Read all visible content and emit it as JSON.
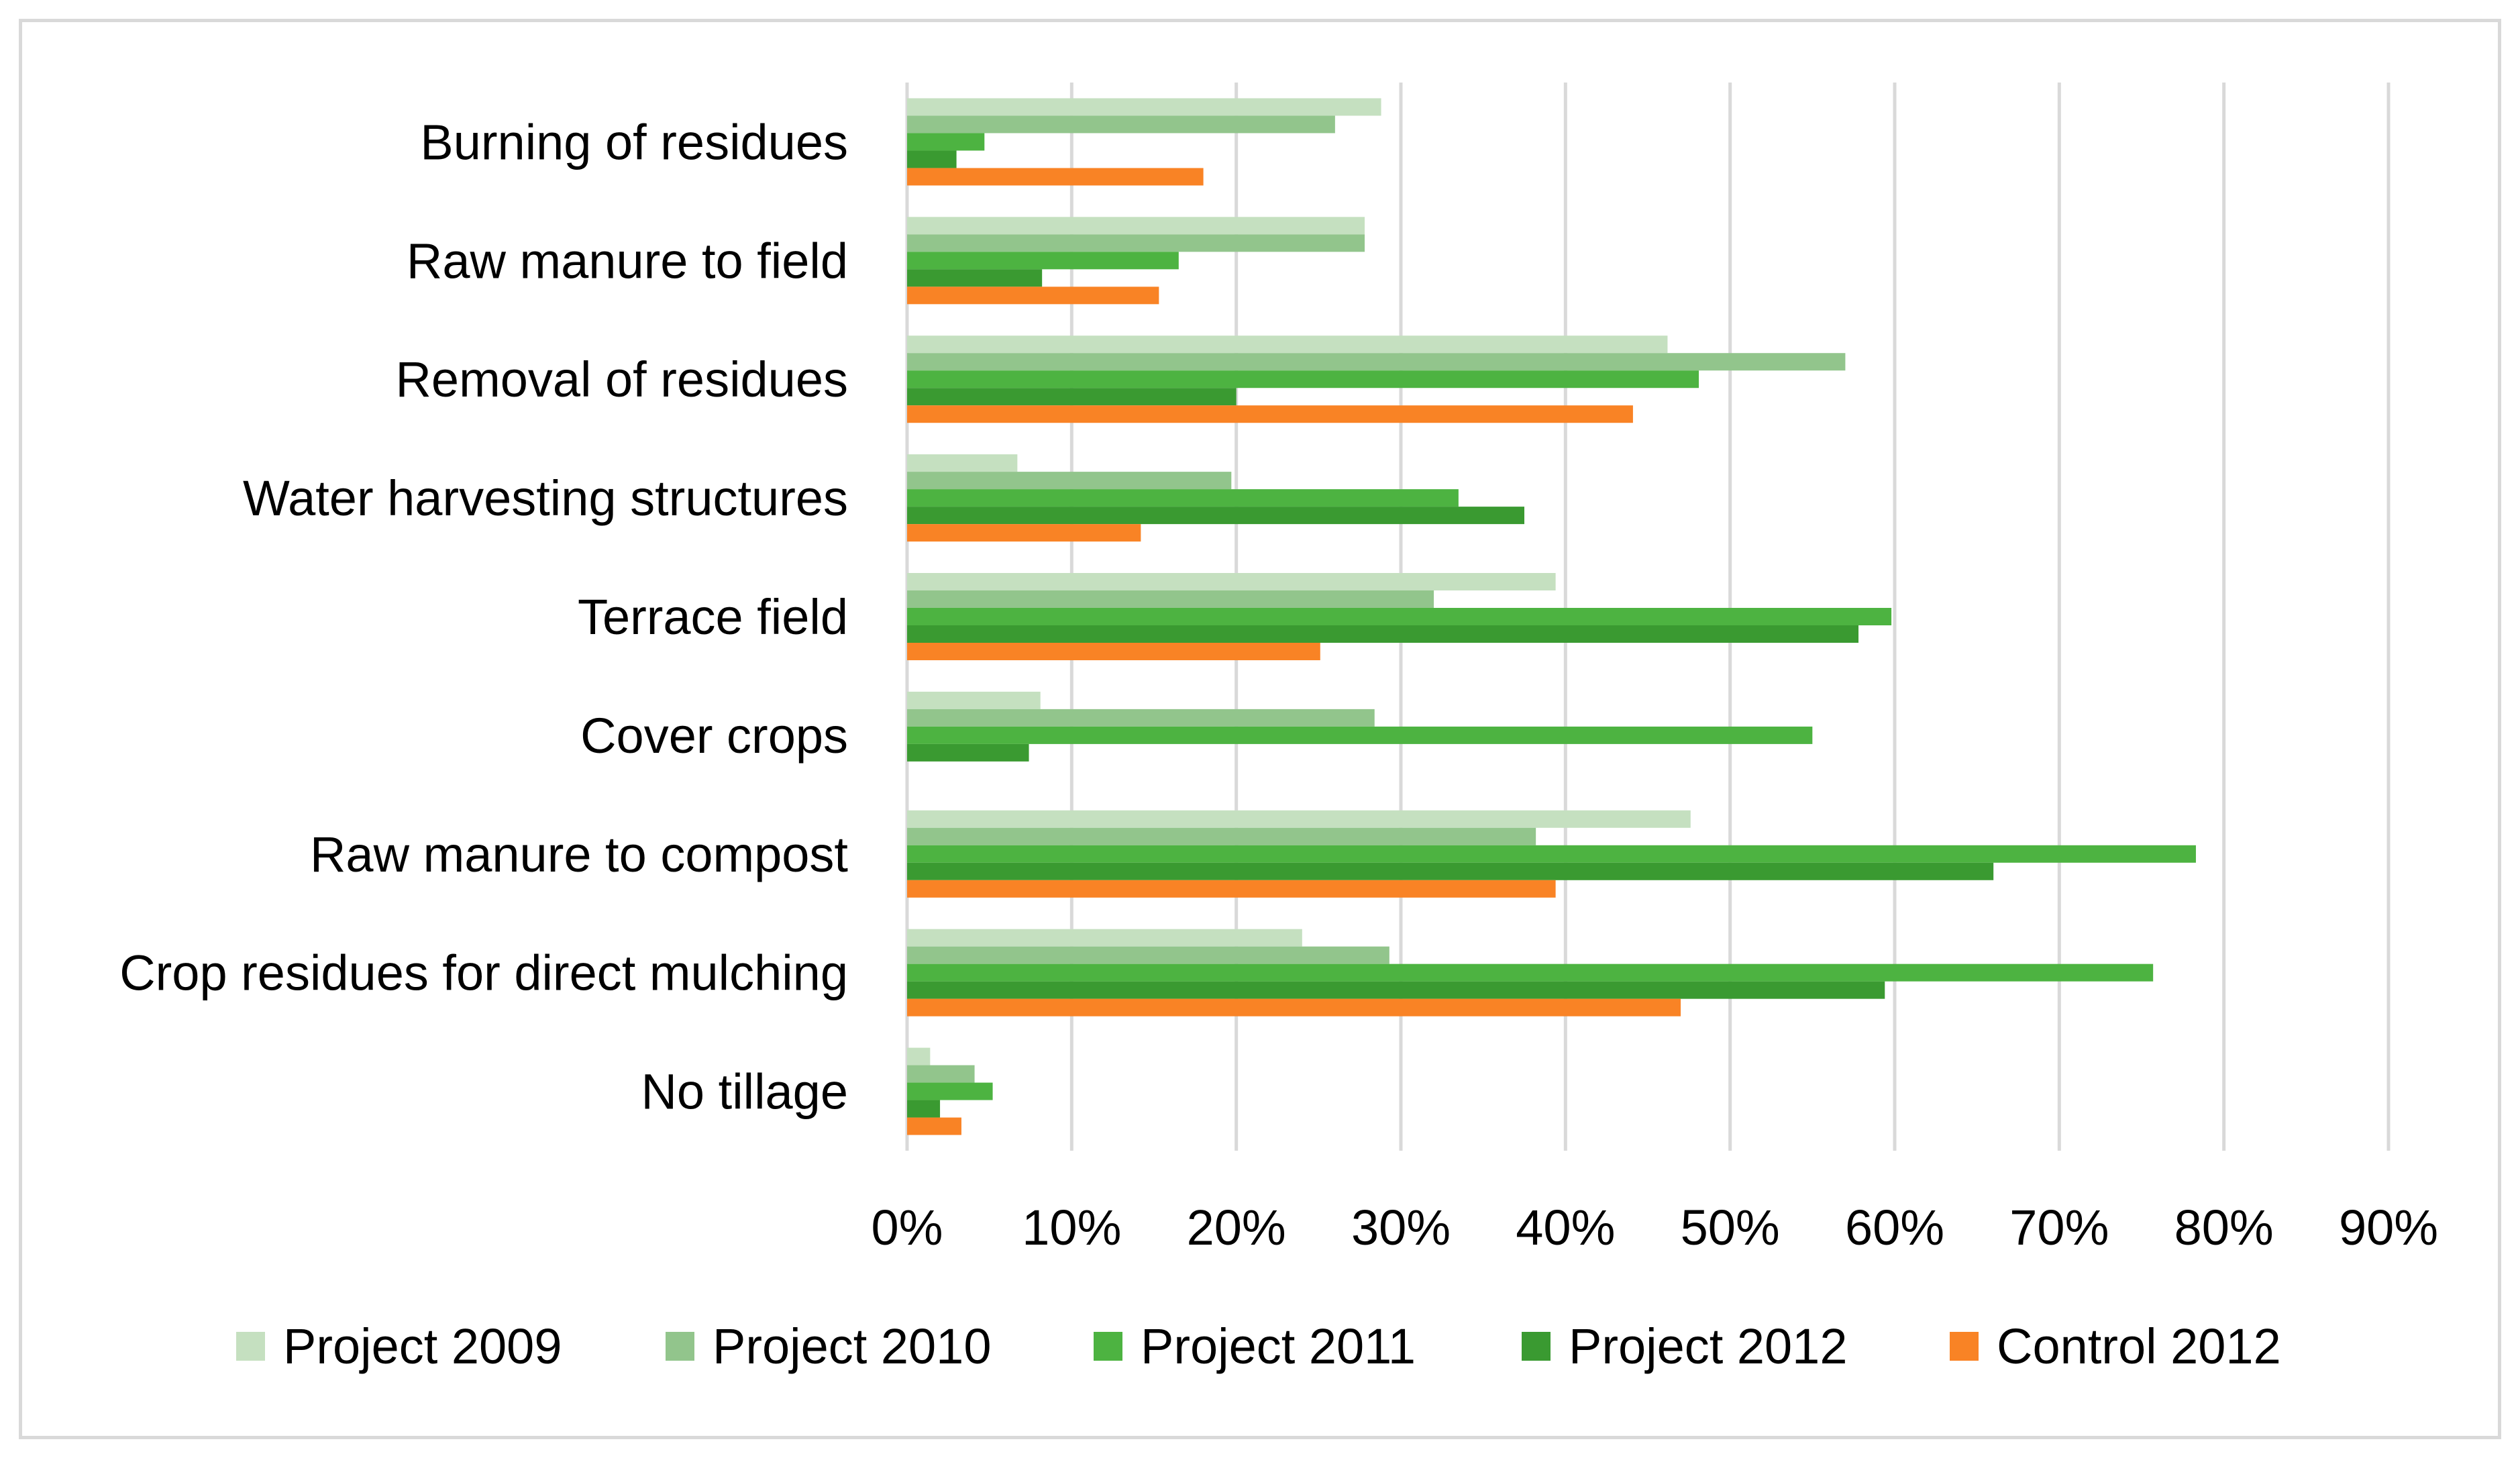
{
  "chart_data": {
    "type": "bar",
    "orientation": "horizontal",
    "categories": [
      "Burning of residues",
      "Raw manure to field",
      "Removal of residues",
      "Water harvesting structures",
      "Terrace field",
      "Cover crops",
      "Raw manure to compost",
      "Crop residues for direct mulching",
      "No tillage"
    ],
    "series": [
      {
        "name": "Project 2009",
        "color": "#c5e0c0",
        "values": [
          28.8,
          27.8,
          46.2,
          6.7,
          39.4,
          8.1,
          47.6,
          24.0,
          1.4
        ]
      },
      {
        "name": "Project 2010",
        "color": "#92c58c",
        "values": [
          26.0,
          27.8,
          57.0,
          19.7,
          32.0,
          28.4,
          38.2,
          29.3,
          4.1
        ]
      },
      {
        "name": "Project 2011",
        "color": "#4db341",
        "values": [
          4.7,
          16.5,
          48.1,
          33.5,
          59.8,
          55.0,
          78.3,
          75.7,
          5.2
        ]
      },
      {
        "name": "Project 2012",
        "color": "#3a9a31",
        "values": [
          3.0,
          8.2,
          20.0,
          37.5,
          57.8,
          7.4,
          66.0,
          59.4,
          2.0
        ]
      },
      {
        "name": "Control 2012",
        "color": "#f98325",
        "values": [
          18.0,
          15.3,
          44.1,
          14.2,
          25.1,
          0,
          39.4,
          47.0,
          3.3
        ]
      }
    ],
    "xlim": [
      0,
      90
    ],
    "xticks": [
      "0%",
      "10%",
      "20%",
      "30%",
      "40%",
      "50%",
      "60%",
      "70%",
      "80%",
      "90%"
    ],
    "xlabel": "",
    "ylabel": "",
    "title": "",
    "grid": "vertical",
    "legend": "bottom"
  }
}
